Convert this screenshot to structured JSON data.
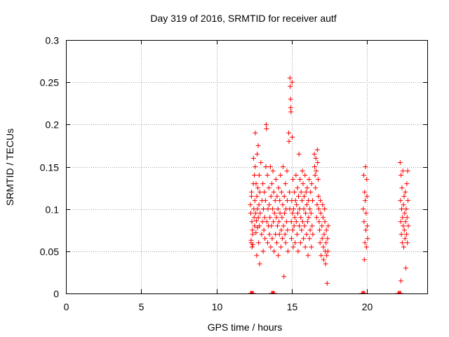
{
  "chart_data": {
    "type": "scatter",
    "title": "Day 319 of 2016, SRMTID for receiver autf",
    "xlabel": "GPS time / hours",
    "ylabel": "SRMTID / TECUs",
    "xlim": [
      0,
      24
    ],
    "ylim": [
      0,
      0.3
    ],
    "xticks": [
      0,
      5,
      10,
      15,
      20
    ],
    "xtick_labels": [
      "0",
      "5",
      "10",
      "15",
      "20"
    ],
    "yticks": [
      0,
      0.05,
      0.1,
      0.15,
      0.2,
      0.25,
      0.3
    ],
    "ytick_labels": [
      "0",
      "0.05",
      "0.1",
      "0.15",
      "0.2",
      "0.25",
      "0.3"
    ],
    "grid": true,
    "marker": "plus",
    "color": "#ff0000",
    "series": [
      {
        "points": [
          [
            12.25,
            0.105
          ],
          [
            12.28,
            0.095
          ],
          [
            12.3,
            0.06
          ],
          [
            12.3,
            0.063
          ],
          [
            12.32,
            0.115
          ],
          [
            12.33,
            0.12
          ],
          [
            12.35,
            0.085
          ],
          [
            12.36,
            0.055
          ],
          [
            12.38,
            0.075
          ],
          [
            12.4,
            0.07
          ],
          [
            12.42,
            0.058
          ],
          [
            12.45,
            0.13
          ],
          [
            12.46,
            0.16
          ],
          [
            12.48,
            0.1
          ],
          [
            12.5,
            0.09
          ],
          [
            12.52,
            0.14
          ],
          [
            12.53,
            0.08
          ],
          [
            12.55,
            0.11
          ],
          [
            12.57,
            0.15
          ],
          [
            12.58,
            0.19
          ],
          [
            12.6,
            0.095
          ],
          [
            12.62,
            0.072
          ],
          [
            12.63,
            0.13
          ],
          [
            12.65,
            0.086
          ],
          [
            12.67,
            0.045
          ],
          [
            12.68,
            0.115
          ],
          [
            12.7,
            0.165
          ],
          [
            12.72,
            0.1
          ],
          [
            12.73,
            0.078
          ],
          [
            12.75,
            0.125
          ],
          [
            12.77,
            0.175
          ],
          [
            12.78,
            0.09
          ],
          [
            12.8,
            0.06
          ],
          [
            12.82,
            0.105
          ],
          [
            12.83,
            0.14
          ],
          [
            12.85,
            0.08
          ],
          [
            12.87,
            0.035
          ],
          [
            12.88,
            0.12
          ],
          [
            12.9,
            0.095
          ],
          [
            12.95,
            0.155
          ],
          [
            13.0,
            0.07
          ],
          [
            13.02,
            0.11
          ],
          [
            13.05,
            0.085
          ],
          [
            13.08,
            0.13
          ],
          [
            13.1,
            0.05
          ],
          [
            13.12,
            0.1
          ],
          [
            13.15,
            0.075
          ],
          [
            13.18,
            0.12
          ],
          [
            13.2,
            0.09
          ],
          [
            13.22,
            0.065
          ],
          [
            13.25,
            0.11
          ],
          [
            13.28,
            0.15
          ],
          [
            13.3,
            0.2
          ],
          [
            13.32,
            0.195
          ],
          [
            13.35,
            0.085
          ],
          [
            13.38,
            0.14
          ],
          [
            13.4,
            0.06
          ],
          [
            13.42,
            0.1
          ],
          [
            13.45,
            0.08
          ],
          [
            13.48,
            0.125
          ],
          [
            13.5,
            0.105
          ],
          [
            13.52,
            0.07
          ],
          [
            13.55,
            0.09
          ],
          [
            13.58,
            0.15
          ],
          [
            13.6,
            0.055
          ],
          [
            13.62,
            0.115
          ],
          [
            13.65,
            0.08
          ],
          [
            13.68,
            0.13
          ],
          [
            13.7,
            0.065
          ],
          [
            13.72,
            0.1
          ],
          [
            13.75,
            0.145
          ],
          [
            13.78,
            0.085
          ],
          [
            13.8,
            0.12
          ],
          [
            13.82,
            0.05
          ],
          [
            13.85,
            0.095
          ],
          [
            13.9,
            0.11
          ],
          [
            13.92,
            0.07
          ],
          [
            13.95,
            0.135
          ],
          [
            13.98,
            0.09
          ],
          [
            14.0,
            0.06
          ],
          [
            14.02,
            0.115
          ],
          [
            14.05,
            0.08
          ],
          [
            14.08,
            0.1
          ],
          [
            14.1,
            0.045
          ],
          [
            14.12,
            0.125
          ],
          [
            14.15,
            0.085
          ],
          [
            14.18,
            0.07
          ],
          [
            14.2,
            0.11
          ],
          [
            14.22,
            0.095
          ],
          [
            14.25,
            0.14
          ],
          [
            14.28,
            0.055
          ],
          [
            14.3,
            0.075
          ],
          [
            14.32,
            0.12
          ],
          [
            14.35,
            0.09
          ],
          [
            14.38,
            0.065
          ],
          [
            14.4,
            0.105
          ],
          [
            14.42,
            0.15
          ],
          [
            14.45,
            0.08
          ],
          [
            14.48,
            0.02
          ],
          [
            14.5,
            0.115
          ],
          [
            14.52,
            0.095
          ],
          [
            14.55,
            0.07
          ],
          [
            14.58,
            0.13
          ],
          [
            14.6,
            0.06
          ],
          [
            14.62,
            0.1
          ],
          [
            14.65,
            0.085
          ],
          [
            14.68,
            0.145
          ],
          [
            14.7,
            0.11
          ],
          [
            14.72,
            0.075
          ],
          [
            14.75,
            0.05
          ],
          [
            14.8,
            0.19
          ],
          [
            14.82,
            0.18
          ],
          [
            14.85,
            0.12
          ],
          [
            14.87,
            0.1
          ],
          [
            14.88,
            0.255
          ],
          [
            14.9,
            0.245
          ],
          [
            14.92,
            0.23
          ],
          [
            14.93,
            0.22
          ],
          [
            14.95,
            0.215
          ],
          [
            14.97,
            0.085
          ],
          [
            14.98,
            0.065
          ],
          [
            15.0,
            0.11
          ],
          [
            15.02,
            0.25
          ],
          [
            15.03,
            0.185
          ],
          [
            15.05,
            0.095
          ],
          [
            15.07,
            0.075
          ],
          [
            15.08,
            0.135
          ],
          [
            15.1,
            0.055
          ],
          [
            15.12,
            0.1
          ],
          [
            15.15,
            0.08
          ],
          [
            15.18,
            0.12
          ],
          [
            15.2,
            0.09
          ],
          [
            15.22,
            0.06
          ],
          [
            15.25,
            0.11
          ],
          [
            15.28,
            0.14
          ],
          [
            15.3,
            0.085
          ],
          [
            15.32,
            0.105
          ],
          [
            15.35,
            0.07
          ],
          [
            15.38,
            0.125
          ],
          [
            15.4,
            0.095
          ],
          [
            15.42,
            0.05
          ],
          [
            15.45,
            0.115
          ],
          [
            15.48,
            0.165
          ],
          [
            15.5,
            0.08
          ],
          [
            15.52,
            0.1
          ],
          [
            15.55,
            0.135
          ],
          [
            15.58,
            0.06
          ],
          [
            15.6,
            0.09
          ],
          [
            15.62,
            0.12
          ],
          [
            15.65,
            0.075
          ],
          [
            15.68,
            0.11
          ],
          [
            15.7,
            0.145
          ],
          [
            15.72,
            0.085
          ],
          [
            15.75,
            0.13
          ],
          [
            15.78,
            0.065
          ],
          [
            15.8,
            0.1
          ],
          [
            15.82,
            0.115
          ],
          [
            15.85,
            0.08
          ],
          [
            15.88,
            0.14
          ],
          [
            15.9,
            0.055
          ],
          [
            15.92,
            0.095
          ],
          [
            15.95,
            0.12
          ],
          [
            15.98,
            0.07
          ],
          [
            16.0,
            0.105
          ],
          [
            16.02,
            0.125
          ],
          [
            16.05,
            0.085
          ],
          [
            16.08,
            0.045
          ],
          [
            16.1,
            0.11
          ],
          [
            16.12,
            0.09
          ],
          [
            16.15,
            0.135
          ],
          [
            16.18,
            0.065
          ],
          [
            16.2,
            0.1
          ],
          [
            16.22,
            0.075
          ],
          [
            16.25,
            0.12
          ],
          [
            16.28,
            0.095
          ],
          [
            16.3,
            0.055
          ],
          [
            16.32,
            0.13
          ],
          [
            16.35,
            0.08
          ],
          [
            16.38,
            0.11
          ],
          [
            16.4,
            0.07
          ],
          [
            16.5,
            0.165
          ],
          [
            16.52,
            0.15
          ],
          [
            16.55,
            0.14
          ],
          [
            16.58,
            0.125
          ],
          [
            16.6,
            0.16
          ],
          [
            16.62,
            0.145
          ],
          [
            16.65,
            0.09
          ],
          [
            16.68,
            0.105
          ],
          [
            16.7,
            0.17
          ],
          [
            16.72,
            0.155
          ],
          [
            16.75,
            0.135
          ],
          [
            16.78,
            0.115
          ],
          [
            16.8,
            0.1
          ],
          [
            16.82,
            0.085
          ],
          [
            16.85,
            0.075
          ],
          [
            16.88,
            0.06
          ],
          [
            16.9,
            0.11
          ],
          [
            16.92,
            0.095
          ],
          [
            16.95,
            0.045
          ],
          [
            17.0,
            0.08
          ],
          [
            17.02,
            0.065
          ],
          [
            17.05,
            0.105
          ],
          [
            17.08,
            0.09
          ],
          [
            17.1,
            0.055
          ],
          [
            17.12,
            0.04
          ],
          [
            17.15,
            0.07
          ],
          [
            17.18,
            0.1
          ],
          [
            17.2,
            0.085
          ],
          [
            17.22,
            0.05
          ],
          [
            17.25,
            0.035
          ],
          [
            17.28,
            0.06
          ],
          [
            17.3,
            0.075
          ],
          [
            17.32,
            0.045
          ],
          [
            17.35,
            0.012
          ],
          [
            17.38,
            0.065
          ],
          [
            17.4,
            0.05
          ],
          [
            17.42,
            0.08
          ],
          [
            19.75,
            0.1
          ],
          [
            19.78,
            0.14
          ],
          [
            19.8,
            0.085
          ],
          [
            19.82,
            0.04
          ],
          [
            19.84,
            0.12
          ],
          [
            19.86,
            0.06
          ],
          [
            19.88,
            0.11
          ],
          [
            19.9,
            0.15
          ],
          [
            19.92,
            0.075
          ],
          [
            19.94,
            0.095
          ],
          [
            19.96,
            0.055
          ],
          [
            19.98,
            0.135
          ],
          [
            20.0,
            0.115
          ],
          [
            20.02,
            0.08
          ],
          [
            20.04,
            0.065
          ],
          [
            22.2,
            0.155
          ],
          [
            22.22,
            0.11
          ],
          [
            22.24,
            0.085
          ],
          [
            22.26,
            0.14
          ],
          [
            22.28,
            0.07
          ],
          [
            22.3,
            0.1
          ],
          [
            22.32,
            0.125
          ],
          [
            22.34,
            0.06
          ],
          [
            22.36,
            0.09
          ],
          [
            22.38,
            0.145
          ],
          [
            22.4,
            0.08
          ],
          [
            22.42,
            0.105
          ],
          [
            22.44,
            0.055
          ],
          [
            22.46,
            0.115
          ],
          [
            22.48,
            0.075
          ],
          [
            22.5,
            0.095
          ],
          [
            22.52,
            0.065
          ],
          [
            22.54,
            0.12
          ],
          [
            22.56,
            0.085
          ],
          [
            22.58,
            0.03
          ],
          [
            22.6,
            0.1
          ],
          [
            22.62,
            0.07
          ],
          [
            22.64,
            0.13
          ],
          [
            22.66,
            0.09
          ],
          [
            22.68,
            0.06
          ],
          [
            22.7,
            0.145
          ],
          [
            22.72,
            0.11
          ],
          [
            22.74,
            0.08
          ],
          [
            22.25,
            0.015
          ]
        ]
      }
    ],
    "zero_markers_x": [
      12.35,
      13.75,
      19.75,
      22.15
    ]
  }
}
